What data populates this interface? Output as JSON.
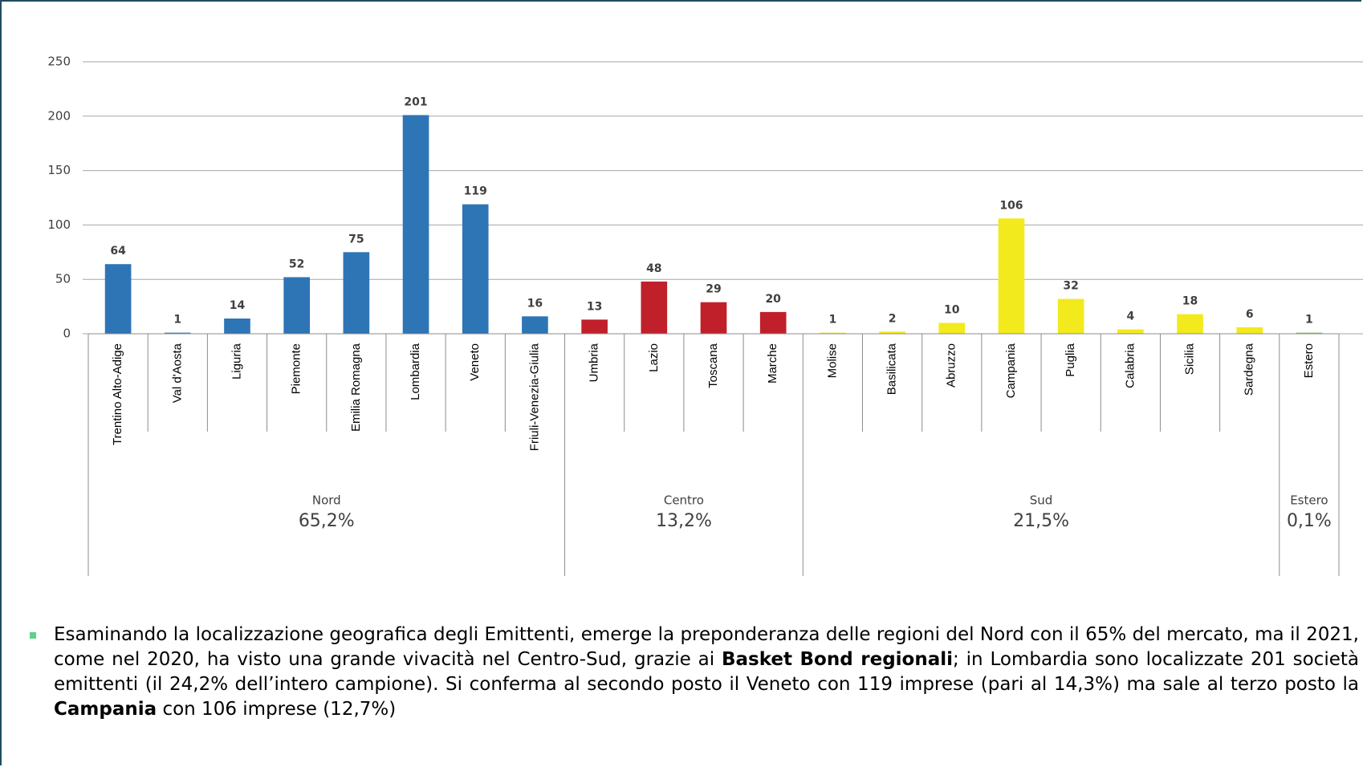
{
  "chart_data": {
    "type": "bar",
    "ylim": [
      0,
      250
    ],
    "yticks": [
      0,
      50,
      100,
      150,
      200,
      250
    ],
    "grid": true,
    "groups": [
      {
        "name": "Nord",
        "share": "65,2%",
        "color": "#2e75b6",
        "categories": [
          "Trentino Alto-Adige",
          "Val d'Aosta",
          "Liguria",
          "Piemonte",
          "Emilia Romagna",
          "Lombardia",
          "Veneto",
          "Friuli-Venezia-Giulia"
        ],
        "values": [
          64,
          1,
          14,
          52,
          75,
          201,
          119,
          16
        ]
      },
      {
        "name": "Centro",
        "share": "13,2%",
        "color": "#c0202a",
        "categories": [
          "Umbria",
          "Lazio",
          "Toscana",
          "Marche"
        ],
        "values": [
          13,
          48,
          29,
          20
        ]
      },
      {
        "name": "Sud",
        "share": "21,5%",
        "color": "#f2ea1c",
        "categories": [
          "Molise",
          "Basilicata",
          "Abruzzo",
          "Campania",
          "Puglia",
          "Calabria",
          "Sicilia",
          "Sardegna"
        ],
        "values": [
          1,
          2,
          10,
          106,
          32,
          4,
          18,
          6
        ]
      },
      {
        "name": "Estero",
        "share": "0,1%",
        "color": "#7cc84a",
        "categories": [
          "Estero"
        ],
        "values": [
          1
        ]
      }
    ]
  },
  "note": [
    {
      "text": "Esaminando la localizzazione geografica degli Emittenti, emerge la preponderanza delle regioni del Nord con il 65% del mercato, ma il 2021, come nel 2020, ha visto una grande vivacità nel Centro-Sud, grazie ai ",
      "bold": false
    },
    {
      "text": "Basket Bond regionali",
      "bold": true
    },
    {
      "text": "; in Lombardia sono localizzate 201 società emittenti (il 24,2% dell’intero campione). Si conferma al secondo posto il Veneto con 119 imprese (pari al 14,3%) ma sale al terzo posto la ",
      "bold": false
    },
    {
      "text": "Campania",
      "bold": true
    },
    {
      "text": " con 106 imprese (12,7%)",
      "bold": false
    }
  ]
}
